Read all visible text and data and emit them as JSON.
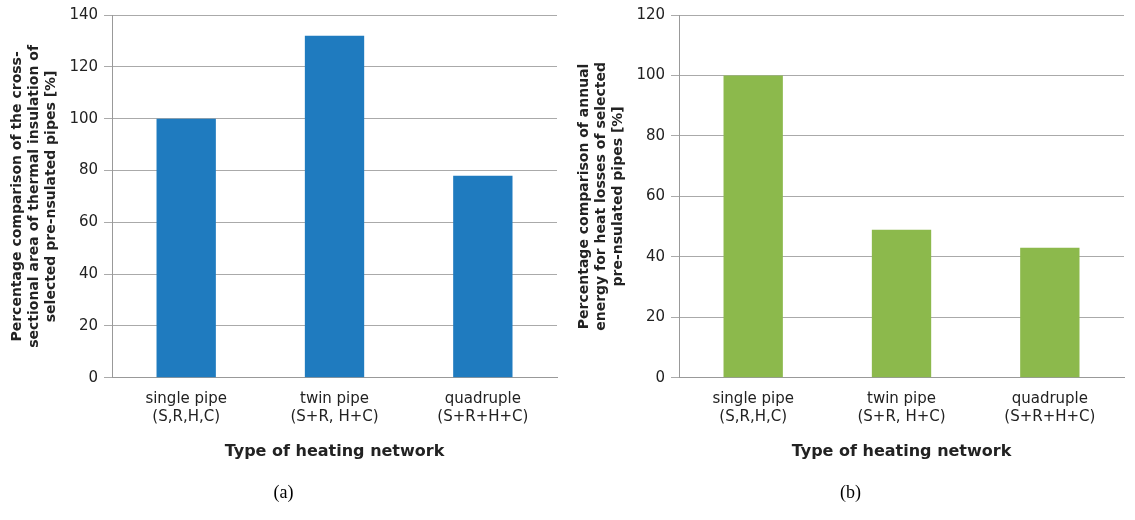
{
  "chart_data": [
    {
      "type": "bar",
      "categories": [
        "single pipe\n(S,R,H,C)",
        "twin pipe\n(S+R, H+C)",
        "quadruple\n(S+R+H+C)"
      ],
      "values": [
        100,
        132,
        78
      ],
      "color": "#1f7bbf",
      "ylim": [
        0,
        140
      ],
      "yticks": [
        0,
        20,
        40,
        60,
        80,
        100,
        120,
        140
      ],
      "grid": "y",
      "xlabel": "Type of heating network",
      "ylabel": "Percentage comparison of the cross-\nsectional area of thermal insulation of\nselected pre-nsulated pipes [%]",
      "annotations": [
        "(a)"
      ]
    },
    {
      "type": "bar",
      "categories": [
        "single pipe\n(S,R,H,C)",
        "twin pipe\n(S+R, H+C)",
        "quadruple\n(S+R+H+C)"
      ],
      "values": [
        100,
        49,
        43
      ],
      "color": "#8cb94c",
      "ylim": [
        0,
        120
      ],
      "yticks": [
        0,
        20,
        40,
        60,
        80,
        100,
        120
      ],
      "grid": "y",
      "xlabel": "Type of heating network",
      "ylabel": "Percentage comparison of annual\nenergy for heat losses of selected\npre-nsulated pipes [%]",
      "annotations": [
        "(b)"
      ]
    }
  ]
}
